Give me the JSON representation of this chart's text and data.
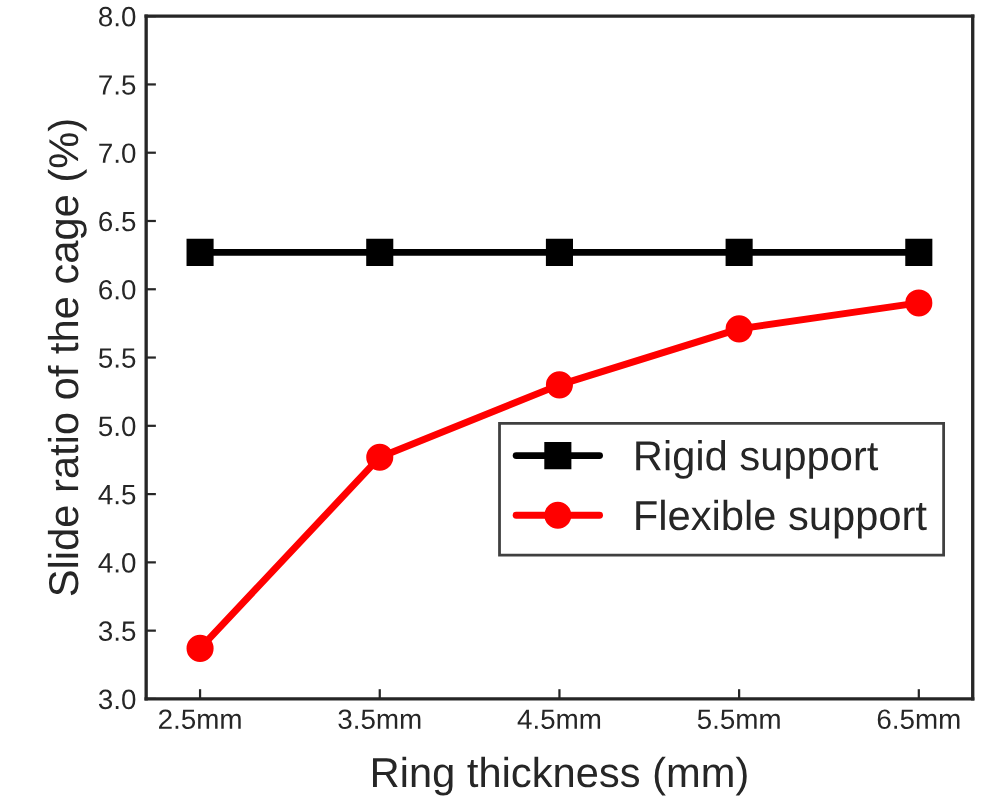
{
  "chart_data": {
    "type": "line",
    "xlabel": "Ring thickness (mm)",
    "ylabel": "Slide ratio of the cage (%)",
    "categories": [
      "2.5mm",
      "3.5mm",
      "4.5mm",
      "5.5mm",
      "6.5mm"
    ],
    "series": [
      {
        "name": "Rigid support",
        "color": "#000000",
        "marker": "square",
        "values": [
          6.27,
          6.27,
          6.27,
          6.27,
          6.27
        ]
      },
      {
        "name": "Flexible support",
        "color": "#ff0000",
        "marker": "circle",
        "values": [
          3.37,
          4.77,
          5.3,
          5.71,
          5.9
        ]
      }
    ],
    "ylim": [
      3.0,
      8.0
    ],
    "yticks": [
      {
        "value": 3.0,
        "label": "3.0"
      },
      {
        "value": 3.5,
        "label": "3.5"
      },
      {
        "value": 4.0,
        "label": "4.0"
      },
      {
        "value": 4.5,
        "label": "4.5"
      },
      {
        "value": 5.0,
        "label": "5.0"
      },
      {
        "value": 5.5,
        "label": "5.5"
      },
      {
        "value": 6.0,
        "label": "6.0"
      },
      {
        "value": 6.5,
        "label": "6.5"
      },
      {
        "value": 7.0,
        "label": "7.0"
      },
      {
        "value": 7.5,
        "label": "7.5"
      },
      {
        "value": 8.0,
        "label": "8.0"
      }
    ],
    "legend": "bottom right",
    "grid": false
  }
}
